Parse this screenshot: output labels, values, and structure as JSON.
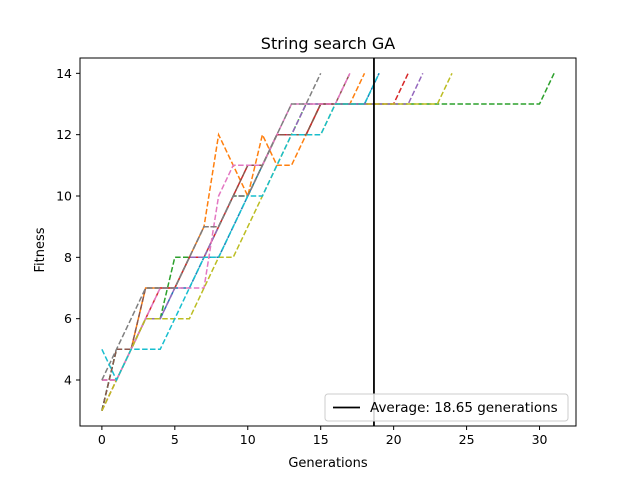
{
  "chart_data": {
    "type": "line",
    "title": "String search GA",
    "xlabel": "Generations",
    "ylabel": "Fitness",
    "xlim": [
      -1.5,
      32.5
    ],
    "ylim": [
      2.5,
      14.5
    ],
    "xticks": [
      0,
      5,
      10,
      15,
      20,
      25,
      30
    ],
    "yticks": [
      4,
      6,
      8,
      10,
      12,
      14
    ],
    "grid": false,
    "legend": {
      "placement": "lower-right",
      "entries": [
        "Average: 18.65 generations"
      ]
    },
    "average_line": {
      "x": 18.65,
      "label": "Average: 18.65 generations",
      "color": "#000000",
      "style": "solid"
    },
    "series": [
      {
        "color": "#1f77b4",
        "style": "dashed",
        "x": [
          0,
          1,
          2,
          3,
          4,
          5,
          6,
          7,
          8,
          9,
          10,
          11,
          12,
          13,
          14,
          15,
          16,
          17,
          18,
          19
        ],
        "y": [
          3,
          5,
          5,
          6,
          6,
          7,
          7,
          8,
          8,
          9,
          10,
          11,
          12,
          12,
          12,
          13,
          13,
          13,
          13,
          14
        ]
      },
      {
        "color": "#ff7f0e",
        "style": "dashed",
        "x": [
          0,
          1,
          2,
          3,
          4,
          5,
          6,
          7,
          8,
          9,
          10,
          11,
          12,
          13,
          14,
          15,
          16,
          17,
          18
        ],
        "y": [
          4,
          4,
          5,
          7,
          7,
          7,
          8,
          9,
          12,
          11,
          10,
          12,
          11,
          11,
          12,
          13,
          13,
          13,
          14
        ]
      },
      {
        "color": "#2ca02c",
        "style": "dashed",
        "x": [
          0,
          1,
          2,
          3,
          4,
          5,
          6,
          7,
          8,
          9,
          10,
          11,
          12,
          13,
          14,
          15,
          16,
          17,
          18,
          19,
          20,
          21,
          22,
          23,
          24,
          25,
          26,
          27,
          28,
          29,
          30,
          31
        ],
        "y": [
          3,
          5,
          5,
          6,
          6,
          8,
          8,
          8,
          9,
          10,
          10,
          11,
          12,
          12,
          13,
          13,
          13,
          13,
          13,
          13,
          13,
          13,
          13,
          13,
          13,
          13,
          13,
          13,
          13,
          13,
          13,
          14
        ]
      },
      {
        "color": "#d62728",
        "style": "dashed",
        "x": [
          0,
          1,
          2,
          3,
          4,
          5,
          6,
          7,
          8,
          9,
          10,
          11,
          12,
          13,
          14,
          15,
          16,
          17,
          18,
          19,
          20,
          21
        ],
        "y": [
          3,
          4,
          5,
          6,
          7,
          7,
          8,
          8,
          9,
          10,
          11,
          11,
          12,
          12,
          12,
          13,
          13,
          13,
          13,
          13,
          13,
          14
        ]
      },
      {
        "color": "#9467bd",
        "style": "dashed",
        "x": [
          0,
          1,
          2,
          3,
          4,
          5,
          6,
          7,
          8,
          9,
          10,
          11,
          12,
          13,
          14,
          15,
          16,
          17,
          18,
          19,
          20,
          21,
          22
        ],
        "y": [
          4,
          4,
          5,
          6,
          6,
          7,
          8,
          8,
          9,
          10,
          10,
          11,
          12,
          12,
          13,
          13,
          13,
          13,
          13,
          13,
          13,
          13,
          14
        ]
      },
      {
        "color": "#8c564b",
        "style": "dashed",
        "x": [
          0,
          1,
          2,
          3,
          4,
          5,
          6,
          7,
          8,
          9,
          10,
          11,
          12,
          13,
          14,
          15,
          16,
          17
        ],
        "y": [
          3,
          5,
          5,
          7,
          7,
          7,
          8,
          9,
          9,
          10,
          11,
          11,
          12,
          12,
          12,
          13,
          13,
          14
        ]
      },
      {
        "color": "#e377c2",
        "style": "dashed",
        "x": [
          0,
          1,
          2,
          3,
          4,
          5,
          6,
          7,
          8,
          9,
          10,
          11,
          12,
          13,
          14,
          15,
          16,
          17
        ],
        "y": [
          4,
          4,
          5,
          6,
          7,
          7,
          7,
          7,
          10,
          11,
          11,
          11,
          12,
          13,
          13,
          13,
          13,
          14
        ]
      },
      {
        "color": "#7f7f7f",
        "style": "dashed",
        "x": [
          0,
          1,
          2,
          3,
          4,
          5,
          6,
          7,
          8,
          9,
          10,
          11,
          12,
          13,
          14,
          15
        ],
        "y": [
          4,
          5,
          6,
          7,
          7,
          7,
          8,
          9,
          9,
          10,
          10,
          11,
          12,
          13,
          13,
          14
        ]
      },
      {
        "color": "#bcbd22",
        "style": "dashed",
        "x": [
          0,
          1,
          2,
          3,
          4,
          5,
          6,
          7,
          8,
          9,
          10,
          11,
          12,
          13,
          14,
          15,
          16,
          17,
          18,
          19,
          20,
          21,
          22,
          23,
          24
        ],
        "y": [
          3,
          4,
          5,
          6,
          6,
          6,
          6,
          7,
          8,
          8,
          9,
          10,
          11,
          12,
          12,
          12,
          13,
          13,
          13,
          13,
          13,
          13,
          13,
          13,
          14
        ]
      },
      {
        "color": "#17becf",
        "style": "dashed",
        "x": [
          0,
          1,
          2,
          3,
          4,
          5,
          6,
          7,
          8,
          9,
          10,
          11,
          12,
          13,
          14,
          15,
          16,
          17,
          18,
          19
        ],
        "y": [
          5,
          4,
          5,
          5,
          5,
          6,
          7,
          8,
          8,
          9,
          10,
          10,
          11,
          12,
          12,
          12,
          13,
          13,
          13,
          14
        ]
      }
    ]
  }
}
